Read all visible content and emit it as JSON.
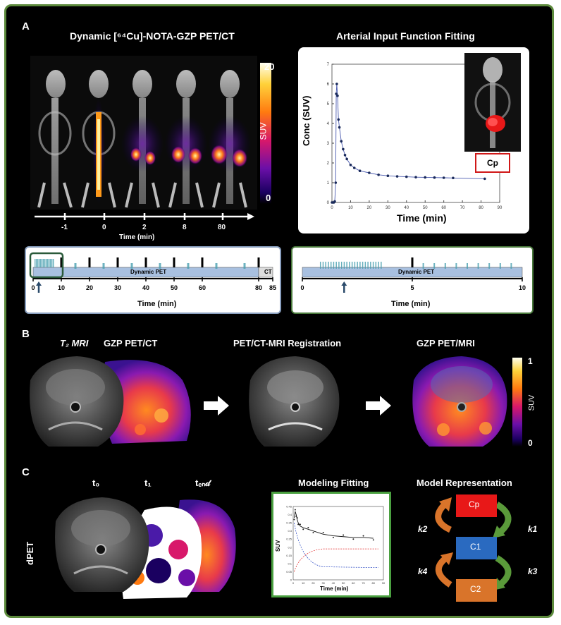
{
  "panelA": {
    "letter": "A",
    "pet_title": "Dynamic [⁶⁴Cu]-NOTA-GZP PET/CT",
    "colorbar": {
      "max": "20",
      "min": "0",
      "label": "SUV"
    },
    "timeline": {
      "ticks": [
        "-1",
        "0",
        "2",
        "8",
        "80"
      ],
      "label": "Time (min)"
    },
    "aif_title": "Arterial Input Function Fitting",
    "aif_plot": {
      "ylabel": "Conc (SUV)",
      "xlabel": "Time (min)",
      "inset_label": "Cp"
    },
    "protocol_long": {
      "bar_label": "Dynamic PET",
      "ct_label": "CT",
      "ticks": [
        "0",
        "10",
        "20",
        "30",
        "40",
        "50",
        "60",
        "80",
        "85"
      ],
      "xlabel": "Time (min)"
    },
    "protocol_short": {
      "bar_label": "Dynamic PET",
      "ticks": [
        "0",
        "5",
        "10"
      ],
      "xlabel": "Time (min)"
    }
  },
  "panelB": {
    "letter": "B",
    "mri_label": "T₂ MRI",
    "petct_label": "GZP PET/CT",
    "reg_title": "PET/CT-MRI Registration",
    "petmri_title": "GZP PET/MRI",
    "colorbar": {
      "max": "1",
      "min": "0",
      "label": "SUV"
    }
  },
  "panelC": {
    "letter": "C",
    "t0": "t₀",
    "t1": "t₁",
    "tend": "tₑₙ𝒹",
    "dpet": "dPET",
    "fit_title": "Modeling Fitting",
    "model_title": "Model Representation",
    "fit_plot": {
      "ylabel": "SUV",
      "xlabel": "Time (min)"
    },
    "model": {
      "cp": "Cp",
      "c1": "C1",
      "c2": "C2",
      "k1": "k1",
      "k2": "k2",
      "k3": "k3",
      "k4": "k4"
    }
  },
  "chart_data": [
    {
      "type": "scatter",
      "title": "Arterial Input Function Fitting",
      "xlabel": "Time (min)",
      "ylabel": "Conc (SUV)",
      "xlim": [
        0,
        90
      ],
      "ylim": [
        0,
        7
      ],
      "x_ticks": [
        0,
        10,
        20,
        30,
        40,
        50,
        60,
        70,
        80,
        90
      ],
      "y_ticks": [
        0,
        1,
        2,
        3,
        4,
        5,
        6,
        7
      ],
      "points": [
        [
          0,
          0
        ],
        [
          0.5,
          0
        ],
        [
          1,
          0
        ],
        [
          1.5,
          0.05
        ],
        [
          2,
          1.0
        ],
        [
          2.3,
          5.5
        ],
        [
          2.6,
          6.0
        ],
        [
          3,
          5.4
        ],
        [
          3.5,
          4.2
        ],
        [
          4,
          3.8
        ],
        [
          5,
          3.1
        ],
        [
          6,
          2.7
        ],
        [
          7,
          2.4
        ],
        [
          8,
          2.2
        ],
        [
          10,
          1.9
        ],
        [
          12,
          1.75
        ],
        [
          15,
          1.6
        ],
        [
          20,
          1.5
        ],
        [
          25,
          1.4
        ],
        [
          30,
          1.35
        ],
        [
          35,
          1.32
        ],
        [
          40,
          1.3
        ],
        [
          45,
          1.28
        ],
        [
          50,
          1.27
        ],
        [
          55,
          1.26
        ],
        [
          60,
          1.25
        ],
        [
          65,
          1.24
        ],
        [
          82,
          1.2
        ]
      ]
    },
    {
      "type": "line",
      "title": "Modeling Fitting",
      "xlabel": "Time (min)",
      "ylabel": "SUV",
      "xlim": [
        0,
        90
      ],
      "ylim": [
        0,
        0.45
      ],
      "x_ticks": [
        0,
        10,
        20,
        30,
        40,
        50,
        60,
        70,
        80,
        90
      ],
      "y_ticks": [
        0,
        0.05,
        0.1,
        0.15,
        0.2,
        0.25,
        0.3,
        0.35,
        0.4,
        0.45
      ],
      "points": [
        [
          1,
          0.38
        ],
        [
          2,
          0.42
        ],
        [
          3,
          0.4
        ],
        [
          4,
          0.37
        ],
        [
          5,
          0.35
        ],
        [
          7,
          0.33
        ],
        [
          10,
          0.32
        ],
        [
          15,
          0.31
        ],
        [
          20,
          0.3
        ],
        [
          30,
          0.28
        ],
        [
          40,
          0.27
        ],
        [
          50,
          0.265
        ],
        [
          60,
          0.26
        ],
        [
          70,
          0.26
        ],
        [
          80,
          0.255
        ]
      ]
    }
  ]
}
